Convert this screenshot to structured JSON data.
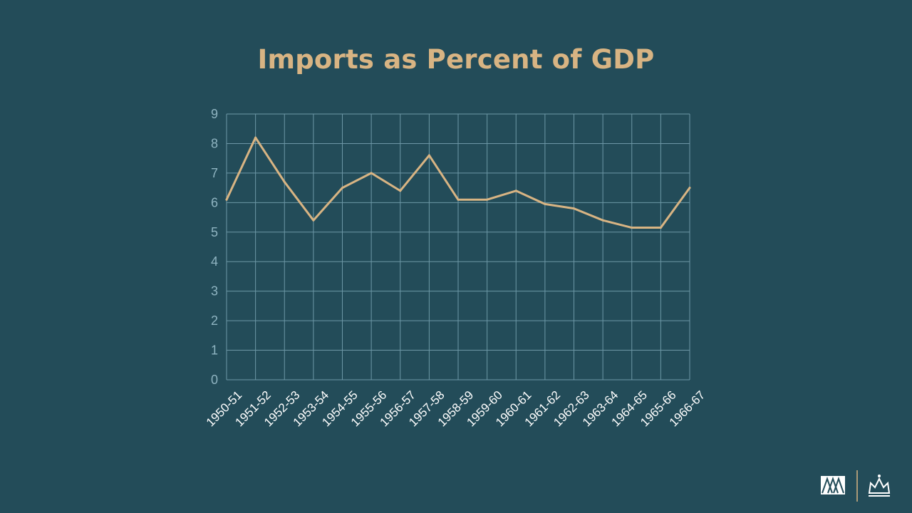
{
  "slide": {
    "title": "Imports as Percent of GDP"
  },
  "colors": {
    "background": "#234c59",
    "accent": "#d8b483",
    "grid": "#6d97a6",
    "ytick": "#8fb4c1",
    "xtick": "#ffffff"
  },
  "logos": {
    "left_icon": "mountains-logo-icon",
    "right_icon": "crown-logo-icon"
  },
  "chart_data": {
    "type": "line",
    "title": "Imports as Percent of GDP",
    "xlabel": "",
    "ylabel": "",
    "ylim": [
      0,
      9
    ],
    "yticks": [
      0,
      1,
      2,
      3,
      4,
      5,
      6,
      7,
      8,
      9
    ],
    "grid": true,
    "categories": [
      "1950-51",
      "1951-52",
      "1952-53",
      "1953-54",
      "1954-55",
      "1955-56",
      "1956-57",
      "1957-58",
      "1958-59",
      "1959-60",
      "1960-61",
      "1961-62",
      "1962-63",
      "1963-64",
      "1964-65",
      "1965-66",
      "1966-67"
    ],
    "series": [
      {
        "values": [
          6.1,
          8.2,
          6.7,
          5.4,
          6.5,
          7.0,
          6.4,
          7.6,
          6.1,
          6.1,
          6.4,
          5.95,
          5.8,
          5.4,
          5.15,
          5.15,
          6.5
        ]
      }
    ]
  }
}
